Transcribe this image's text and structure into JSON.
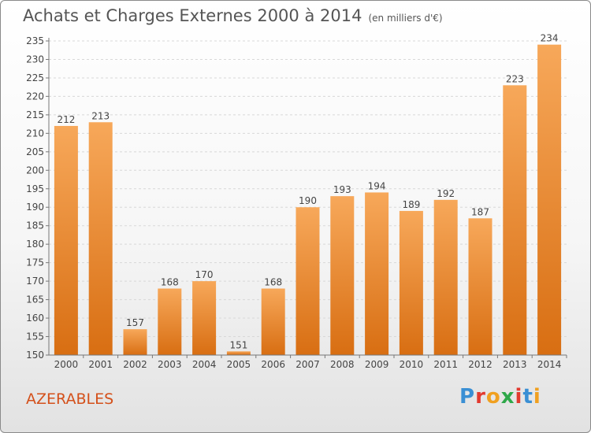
{
  "header": {
    "title": "Achats et Charges Externes 2000 à 2014",
    "subtitle": "(en milliers d'€)"
  },
  "commune": "AZERABLES",
  "logo": {
    "letters": [
      "P",
      "r",
      "o",
      "x",
      "i",
      "t",
      "i"
    ],
    "colors": [
      "#3a8fd4",
      "#e23a2f",
      "#f0a020",
      "#2fa84a",
      "#e23a2f",
      "#3a8fd4",
      "#f0a020"
    ]
  },
  "colors": {
    "bar_light": "#f7a85a",
    "bar_dark": "#d86e12",
    "axis": "#777777",
    "text": "#444444"
  },
  "chart_data": {
    "type": "bar",
    "categories": [
      "2000",
      "2001",
      "2002",
      "2003",
      "2004",
      "2005",
      "2006",
      "2007",
      "2008",
      "2009",
      "2010",
      "2011",
      "2012",
      "2013",
      "2014"
    ],
    "values": [
      212,
      213,
      157,
      168,
      170,
      151,
      168,
      190,
      193,
      194,
      189,
      192,
      187,
      223,
      234
    ],
    "ylim": [
      150,
      235
    ],
    "yticks": [
      150,
      155,
      160,
      165,
      170,
      175,
      180,
      185,
      190,
      195,
      200,
      205,
      210,
      215,
      220,
      225,
      230,
      235
    ],
    "grid": true
  }
}
